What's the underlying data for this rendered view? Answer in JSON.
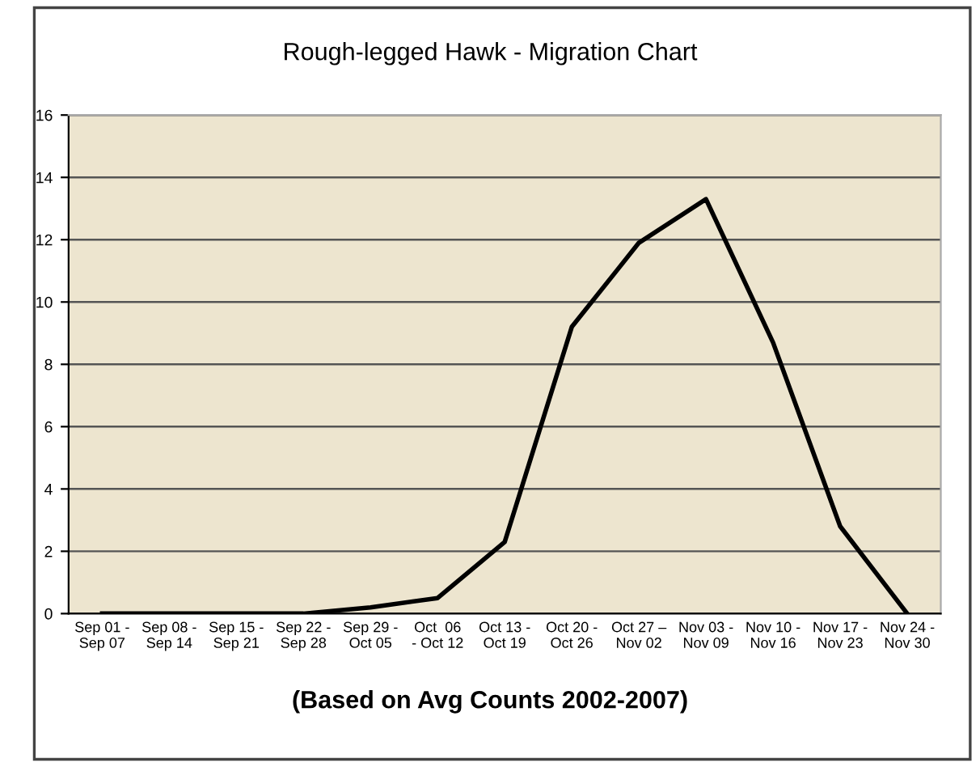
{
  "chart_data": {
    "type": "line",
    "title": "Rough-legged Hawk - Migration Chart",
    "categories": [
      "Sep 01 -\nSep 07",
      "Sep 08 -\nSep 14",
      "Sep 15 -\nSep 21",
      "Sep 22 -\nSep 28",
      "Sep 29 -\nOct 05",
      "Oct  06\n- Oct 12",
      "Oct 13 -\nOct 19",
      "Oct 20 -\nOct 26",
      "Oct 27 –\nNov 02",
      "Nov 03 -\nNov 09",
      "Nov 10 -\nNov 16",
      "Nov 17 -\nNov 23",
      "Nov 24 -\nNov 30"
    ],
    "series": [
      {
        "color": "#000000",
        "values": [
          0,
          0,
          0,
          0,
          0.2,
          0.5,
          2.3,
          9.2,
          11.9,
          13.3,
          8.7,
          2.8,
          0
        ]
      }
    ],
    "ylim": [
      0,
      16
    ],
    "yticks": [
      0,
      2,
      4,
      6,
      8,
      10,
      12,
      14,
      16
    ],
    "grid": "y",
    "marker": "none",
    "line_style": "solid",
    "annotations": [
      "(Based on Avg Counts 2002-2007)"
    ]
  }
}
